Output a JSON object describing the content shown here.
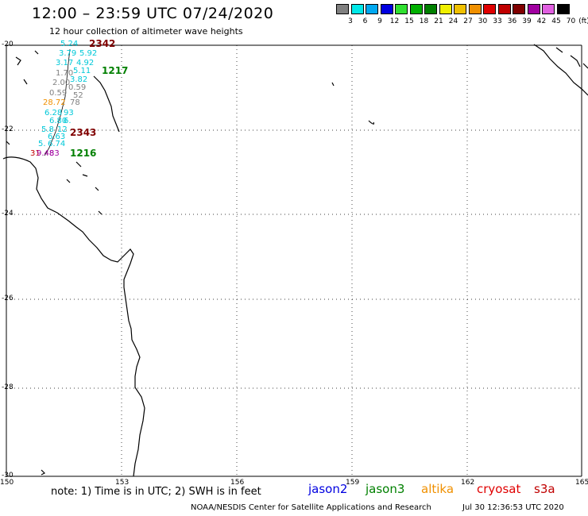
{
  "title": "12:00 – 23:59 UTC 07/24/2020",
  "subtitle": "12 hour collection of altimeter wave heights",
  "colorbar": {
    "unit": "(ft)",
    "labels": [
      "3",
      "6",
      "9",
      "12",
      "15",
      "18",
      "21",
      "24",
      "27",
      "30",
      "33",
      "36",
      "39",
      "42",
      "45",
      "70"
    ],
    "colors": [
      "#808080",
      "#00e8e8",
      "#00a8f0",
      "#0000e0",
      "#30e030",
      "#00b000",
      "#008000",
      "#f0f000",
      "#f0c000",
      "#f09000",
      "#e00000",
      "#c00000",
      "#800000",
      "#a000a0",
      "#e060e0",
      "#000000"
    ]
  },
  "map": {
    "lat_labels": [
      "-20",
      "-22",
      "-24",
      "-26",
      "-28",
      "-30"
    ],
    "lon_labels": [
      "150",
      "153",
      "156",
      "159",
      "162",
      "165"
    ]
  },
  "waves": [
    {
      "v": "5.24",
      "c": "#00c8d8"
    },
    {
      "v": "3.79",
      "c": "#00c8d8"
    },
    {
      "v": "5.92",
      "c": "#00c8d8"
    },
    {
      "v": "3.17",
      "c": "#00c8d8"
    },
    {
      "v": "4.92",
      "c": "#00c8d8"
    },
    {
      "v": "1.70",
      "c": "#808080"
    },
    {
      "v": "5.11",
      "c": "#00c8d8"
    },
    {
      "v": "2.00",
      "c": "#808080"
    },
    {
      "v": "3.82",
      "c": "#00c8d8"
    },
    {
      "v": "0.59",
      "c": "#808080"
    },
    {
      "v": "0.59",
      "c": "#808080"
    },
    {
      "v": "52",
      "c": "#808080"
    },
    {
      "v": "28.72",
      "c": "#f09000"
    },
    {
      "v": "78",
      "c": "#808080"
    },
    {
      "v": "6.28",
      "c": "#00c8d8"
    },
    {
      "v": "93",
      "c": "#00c8d8"
    },
    {
      "v": "6.80",
      "c": "#00c8d8"
    },
    {
      "v": "6.",
      "c": "#00c8d8"
    },
    {
      "v": "5.8",
      "c": "#00c8d8"
    },
    {
      "v": "12",
      "c": "#00c8d8"
    },
    {
      "v": "6.63",
      "c": "#00c8d8"
    },
    {
      "v": "5.",
      "c": "#00c8d8"
    },
    {
      "v": "6.74",
      "c": "#00c8d8"
    },
    {
      "v": "31",
      "c": "#c00000"
    },
    {
      "v": "9.48",
      "c": "#a000a0"
    },
    {
      "v": "83",
      "c": "#a000a0"
    }
  ],
  "passes": [
    {
      "v": "2342",
      "c": "#800000"
    },
    {
      "v": "1217",
      "c": "#008000"
    },
    {
      "v": "2343",
      "c": "#800000"
    },
    {
      "v": "1216",
      "c": "#008000"
    }
  ],
  "footer": {
    "note": "note: 1) Time is in UTC; 2) SWH is in feet",
    "satellites": [
      {
        "name": "jason2",
        "color": "#0000e0"
      },
      {
        "name": "jason3",
        "color": "#008000"
      },
      {
        "name": "altika",
        "color": "#f09000"
      },
      {
        "name": "cryosat",
        "color": "#e00000"
      },
      {
        "name": "s3a",
        "color": "#c00000"
      }
    ],
    "credit": "NOAA/NESDIS Center for Satellite Applications and Research",
    "timestamp": "Jul 30 12:36:53 UTC 2020"
  }
}
